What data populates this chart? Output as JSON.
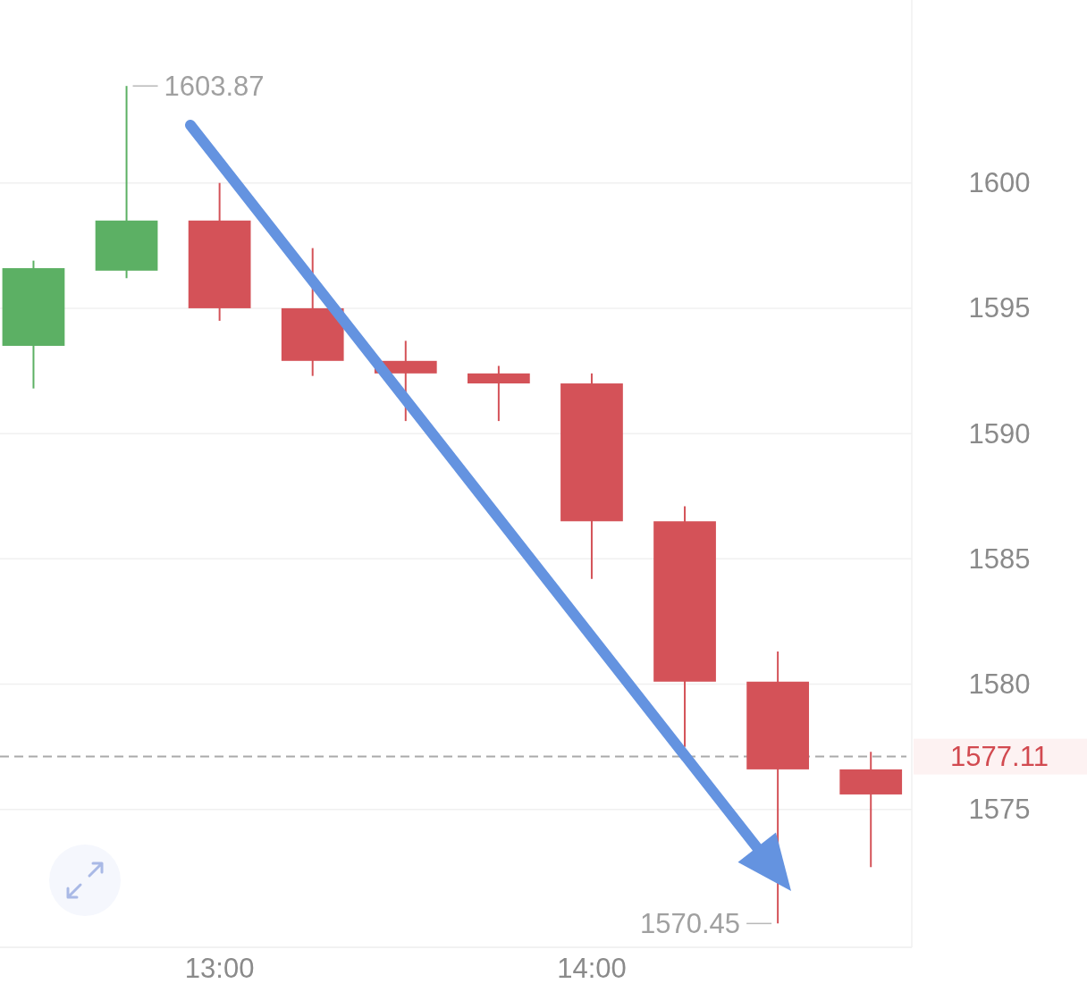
{
  "chart_data": {
    "type": "candlestick",
    "x": [
      12.5,
      12.75,
      13,
      13.25,
      13.5,
      13.75,
      14,
      14.25,
      14.5,
      14.75
    ],
    "ohlc": [
      [
        1593.5,
        1596.9,
        1591.8,
        1596.6
      ],
      [
        1596.5,
        1603.87,
        1596.2,
        1598.5
      ],
      [
        1598.5,
        1600.0,
        1594.5,
        1595.0
      ],
      [
        1595.0,
        1597.4,
        1592.3,
        1592.9
      ],
      [
        1592.9,
        1593.7,
        1590.5,
        1592.4
      ],
      [
        1592.4,
        1592.7,
        1590.5,
        1592.0
      ],
      [
        1592.0,
        1592.4,
        1584.2,
        1586.5
      ],
      [
        1586.5,
        1587.1,
        1577.5,
        1580.1
      ],
      [
        1580.1,
        1581.3,
        1570.45,
        1576.6
      ],
      [
        1576.6,
        1577.3,
        1572.7,
        1575.6
      ]
    ],
    "colors": [
      "#5cb064",
      "#5cb064",
      "#d45258",
      "#d45258",
      "#d45258",
      "#d45258",
      "#d45258",
      "#d45258",
      "#d45258",
      "#d45258"
    ],
    "xlim": [
      12.41,
      14.86
    ],
    "xticks": [
      {
        "value": 13,
        "label": "13:00"
      },
      {
        "value": 14,
        "label": "14:00"
      }
    ],
    "ylim": [
      1569.5,
      1607.3
    ],
    "yticks": [
      1575,
      1580,
      1585,
      1590,
      1595,
      1600
    ],
    "grid": "y",
    "ref_lines": [
      {
        "axis": "y",
        "value": 1577.11,
        "label": "1577.11",
        "color": "#aaaaaa",
        "line_style": "dashed"
      }
    ],
    "annotations": [
      {
        "text": "1603.87",
        "x": 12.75,
        "y": 1603.87
      },
      {
        "text": "1570.45",
        "x": 14.5,
        "y": 1570.45
      }
    ]
  }
}
